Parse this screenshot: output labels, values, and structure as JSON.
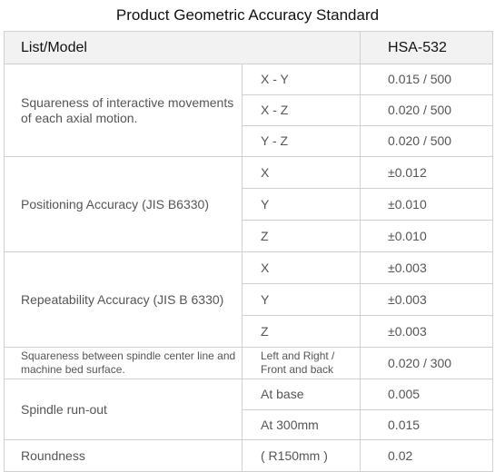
{
  "title": "Product Geometric Accuracy Standard",
  "header": {
    "list_model": "List/Model",
    "model": "HSA-532"
  },
  "rows": [
    {
      "parameter": "Squareness of interactive movements of each axial motion.",
      "items": [
        {
          "axis": "X - Y",
          "value": "0.015 / 500"
        },
        {
          "axis": "X - Z",
          "value": "0.020 / 500"
        },
        {
          "axis": "Y - Z",
          "value": "0.020 / 500"
        }
      ]
    },
    {
      "parameter": "Positioning Accuracy (JIS B6330)",
      "items": [
        {
          "axis": "X",
          "value": "±0.012"
        },
        {
          "axis": "Y",
          "value": "±0.010"
        },
        {
          "axis": "Z",
          "value": "±0.010"
        }
      ]
    },
    {
      "parameter": "Repeatability Accuracy (JIS B 6330)",
      "items": [
        {
          "axis": "X",
          "value": "±0.003"
        },
        {
          "axis": "Y",
          "value": "±0.003"
        },
        {
          "axis": "Z",
          "value": "±0.003"
        }
      ]
    },
    {
      "parameter": "Squareness between spindle center line and machine bed surface.",
      "items": [
        {
          "axis": "Left and Right / Front and back",
          "value": "0.020 / 300"
        }
      ]
    },
    {
      "parameter": "Spindle run-out",
      "items": [
        {
          "axis": "At base",
          "value": "0.005"
        },
        {
          "axis": "At  300mm",
          "value": "0.015"
        }
      ]
    },
    {
      "parameter": "Roundness",
      "items": [
        {
          "axis": "( R150mm )",
          "value": "0.02"
        }
      ]
    }
  ]
}
